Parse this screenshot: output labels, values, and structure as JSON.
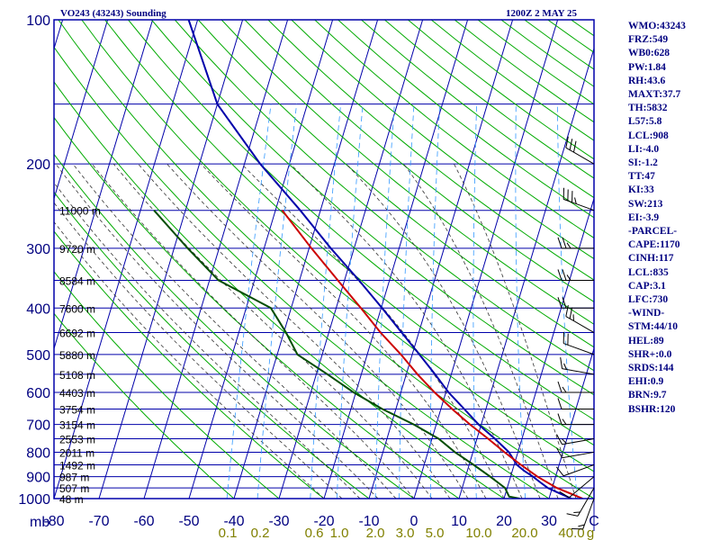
{
  "header": {
    "left": "VO243 (43243) Sounding",
    "right": "1200Z  2 MAY 25"
  },
  "stats": [
    "WMO:43243",
    "FRZ:549",
    "WB0:628",
    "PW:1.84",
    "RH:43.6",
    "MAXT:37.7",
    "TH:5832",
    "L57:5.8",
    "LCL:908",
    "LI:-4.0",
    "SI:-1.2",
    "TT:47",
    "KI:33",
    "SW:213",
    "EI:-3.9",
    "-PARCEL-",
    "CAPE:1170",
    "CINH:117",
    "LCL:835",
    "CAP:3.1",
    "LFC:730",
    "-WIND-",
    "STM:44/10",
    "HEL:89",
    "SHR+:0.0",
    "SRDS:144",
    "EHI:0.9",
    "BRN:9.7",
    "BSHR:120"
  ],
  "colors": {
    "grid": "#0000aa",
    "dry_adiabat": "#00aa00",
    "moist_adiabat": "#333333",
    "mixing_ratio": "#3399ff",
    "temperature": "#0000aa",
    "dewpoint": "#004d00",
    "parcel": "#cc0000",
    "axis_text": "#000080",
    "mixing_text": "#808000",
    "wind_barb": "#000000"
  },
  "chart_data": {
    "type": "line",
    "title": "VO243 (43243) Sounding",
    "xlabel": "C",
    "ylabel": "mb",
    "xlim": [
      -80,
      40
    ],
    "ylim": [
      1000,
      100
    ],
    "y_scale": "log",
    "skew": true,
    "pressure_ticks": [
      "100",
      "200",
      "300",
      "400",
      "500",
      "600",
      "700",
      "800",
      "900",
      "1000"
    ],
    "temp_ticks": [
      "-80",
      "-70",
      "-60",
      "-50",
      "-40",
      "-30",
      "-20",
      "-10",
      "0",
      "10",
      "20",
      "30",
      "C"
    ],
    "height_labels": [
      {
        "p": 1000,
        "label": "48 m"
      },
      {
        "p": 950,
        "label": "507 m"
      },
      {
        "p": 900,
        "label": "987 m"
      },
      {
        "p": 850,
        "label": "1492 m"
      },
      {
        "p": 800,
        "label": "2011 m"
      },
      {
        "p": 750,
        "label": "2553 m"
      },
      {
        "p": 700,
        "label": "3154 m"
      },
      {
        "p": 650,
        "label": "3754 m"
      },
      {
        "p": 600,
        "label": "4403 m"
      },
      {
        "p": 550,
        "label": "5108 m"
      },
      {
        "p": 500,
        "label": "5880 m"
      },
      {
        "p": 450,
        "label": "6692 m"
      },
      {
        "p": 400,
        "label": "7600 m"
      },
      {
        "p": 350,
        "label": "8584 m"
      },
      {
        "p": 300,
        "label": "9720 m"
      },
      {
        "p": 250,
        "label": "11000 m"
      }
    ],
    "mixing_ratio_labels": [
      "0.1",
      "0.2",
      "0.6",
      "1.0",
      "2.0",
      "3.0",
      "5.0",
      "10.0",
      "20.0",
      "40.0",
      "g"
    ],
    "series": [
      {
        "points": [
          {
            "p": 1000,
            "t": 35.0
          },
          {
            "p": 975,
            "t": 32.0
          },
          {
            "p": 950,
            "t": 29.0
          },
          {
            "p": 925,
            "t": 27.0
          },
          {
            "p": 900,
            "t": 25.0
          },
          {
            "p": 875,
            "t": 22.6
          },
          {
            "p": 850,
            "t": 20.6
          },
          {
            "p": 800,
            "t": 18.0
          },
          {
            "p": 750,
            "t": 14.0
          },
          {
            "p": 700,
            "t": 9.4
          },
          {
            "p": 650,
            "t": 5.2
          },
          {
            "p": 600,
            "t": 0.6
          },
          {
            "p": 550,
            "t": -3.6
          },
          {
            "p": 500,
            "t": -8.4
          },
          {
            "p": 450,
            "t": -13.8
          },
          {
            "p": 400,
            "t": -19.8
          },
          {
            "p": 350,
            "t": -26.8
          },
          {
            "p": 300,
            "t": -35.2
          },
          {
            "p": 250,
            "t": -44.5
          },
          {
            "p": 200,
            "t": -56.5
          },
          {
            "p": 150,
            "t": -70.0
          },
          {
            "p": 100,
            "t": -82.0
          }
        ]
      },
      {
        "points": [
          {
            "p": 1000,
            "t": 23.5
          },
          {
            "p": 990,
            "t": 21.0
          },
          {
            "p": 950,
            "t": 19.5
          },
          {
            "p": 900,
            "t": 15.5
          },
          {
            "p": 850,
            "t": 11.0
          },
          {
            "p": 800,
            "t": 6.0
          },
          {
            "p": 750,
            "t": 1.5
          },
          {
            "p": 700,
            "t": -5.0
          },
          {
            "p": 650,
            "t": -13.0
          },
          {
            "p": 600,
            "t": -20.5
          },
          {
            "p": 550,
            "t": -27.5
          },
          {
            "p": 500,
            "t": -35.5
          },
          {
            "p": 450,
            "t": -39.5
          },
          {
            "p": 400,
            "t": -44.5
          },
          {
            "p": 350,
            "t": -58.0
          },
          {
            "p": 300,
            "t": -67.0
          },
          {
            "p": 250,
            "t": -77.0
          }
        ]
      },
      {
        "points": [
          {
            "p": 1000,
            "t": 37.5
          },
          {
            "p": 950,
            "t": 31.0
          },
          {
            "p": 900,
            "t": 26.0
          },
          {
            "p": 850,
            "t": 21.5
          },
          {
            "p": 800,
            "t": 17.0
          },
          {
            "p": 750,
            "t": 12.5
          },
          {
            "p": 700,
            "t": 7.5
          },
          {
            "p": 650,
            "t": 2.5
          },
          {
            "p": 600,
            "t": -2.5
          },
          {
            "p": 550,
            "t": -7.5
          },
          {
            "p": 500,
            "t": -12.5
          },
          {
            "p": 450,
            "t": -18.5
          },
          {
            "p": 400,
            "t": -24.5
          },
          {
            "p": 350,
            "t": -31.5
          },
          {
            "p": 300,
            "t": -39.5
          },
          {
            "p": 250,
            "t": -48.5
          }
        ]
      }
    ],
    "wind_barbs": [
      {
        "p": 1000,
        "dir": 200,
        "spd": 15
      },
      {
        "p": 950,
        "dir": 210,
        "spd": 15
      },
      {
        "p": 900,
        "dir": 230,
        "spd": 10
      },
      {
        "p": 850,
        "dir": 250,
        "spd": 10
      },
      {
        "p": 800,
        "dir": 260,
        "spd": 10
      },
      {
        "p": 750,
        "dir": 260,
        "spd": 15
      },
      {
        "p": 700,
        "dir": 270,
        "spd": 15
      },
      {
        "p": 650,
        "dir": 270,
        "spd": 10
      },
      {
        "p": 600,
        "dir": 270,
        "spd": 15
      },
      {
        "p": 550,
        "dir": 280,
        "spd": 15
      },
      {
        "p": 500,
        "dir": 290,
        "spd": 20
      },
      {
        "p": 450,
        "dir": 300,
        "spd": 25
      },
      {
        "p": 400,
        "dir": 270,
        "spd": 20
      },
      {
        "p": 350,
        "dir": 270,
        "spd": 25
      },
      {
        "p": 300,
        "dir": 270,
        "spd": 25
      },
      {
        "p": 250,
        "dir": 290,
        "spd": 35
      },
      {
        "p": 200,
        "dir": 300,
        "spd": 30
      }
    ]
  }
}
